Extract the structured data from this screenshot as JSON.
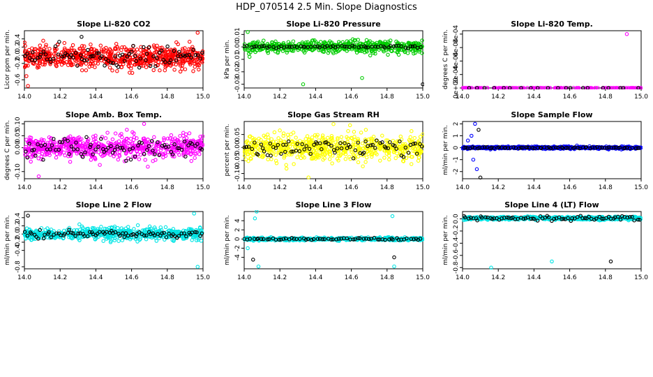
{
  "figure_title": "HDP_070514  2.5 Min. Slope Diagnostics",
  "chart_data": [
    {
      "type": "scatter",
      "title": "Slope Li-820 CO2",
      "ylabel": "Licor ppm per min.",
      "xlim": [
        14.0,
        15.0
      ],
      "ylim": [
        -0.8,
        0.6
      ],
      "xticks": [
        "14.0",
        "14.2",
        "14.4",
        "14.6",
        "14.8",
        "15.0"
      ],
      "yticks": [
        [
          -0.6,
          "-0.6"
        ],
        [
          -0.2,
          "-0.2"
        ],
        [
          0.0,
          "0.0"
        ],
        [
          0.2,
          "0.2"
        ],
        [
          0.4,
          "0.4"
        ]
      ],
      "color": "#ff0000",
      "n_points": 700,
      "center": -0.05,
      "spread": 0.22,
      "black_spread": 0.2,
      "outliers": [
        [
          14.02,
          -0.75
        ],
        [
          14.97,
          0.55
        ],
        [
          14.32,
          0.45
        ]
      ]
    },
    {
      "type": "scatter",
      "title": "Slope Li-820 Pressure",
      "ylabel": "kPa per min.",
      "xlim": [
        14.0,
        15.0
      ],
      "ylim": [
        -0.033,
        0.013
      ],
      "xticks": [
        "14.0",
        "14.2",
        "14.4",
        "14.6",
        "14.8",
        "15.0"
      ],
      "yticks": [
        [
          -0.03,
          "-0.03"
        ],
        [
          -0.02,
          "-0.02"
        ],
        [
          -0.01,
          "-0.01"
        ],
        [
          0.0,
          "0.00"
        ],
        [
          0.01,
          "0.01"
        ]
      ],
      "color": "#00cc00",
      "n_points": 520,
      "center": 0.0,
      "spread": 0.004,
      "black_spread": 0.0008,
      "outliers": [
        [
          14.33,
          -0.03
        ],
        [
          14.66,
          -0.025
        ],
        [
          15.0,
          -0.03
        ],
        [
          14.02,
          0.012
        ],
        [
          14.03,
          -0.008
        ]
      ]
    },
    {
      "type": "scatter",
      "title": "Slope Li-820 Temp.",
      "ylabel": "degrees C per min.",
      "xlim": [
        14.0,
        15.0
      ],
      "ylim": [
        0.0,
        0.00085
      ],
      "xticks": [
        "14.0",
        "14.2",
        "14.4",
        "14.6",
        "14.8",
        "15.0"
      ],
      "yticks": [
        [
          0.0,
          "0e+00"
        ],
        [
          0.0002,
          "2e-04"
        ],
        [
          0.0004,
          "4e-04"
        ],
        [
          0.0006,
          "6e-04"
        ],
        [
          0.0008,
          "8e-04"
        ]
      ],
      "color": "#ff00ff",
      "n_points": 160,
      "center": 0.0,
      "spread": 0.0,
      "black_spread": 0.0,
      "outliers": [
        [
          14.92,
          0.0008
        ]
      ]
    },
    {
      "type": "scatter",
      "title": "Slope Amb. Box Temp.",
      "ylabel": "degrees C per min.",
      "xlim": [
        14.0,
        15.0
      ],
      "ylim": [
        -0.13,
        0.11
      ],
      "xticks": [
        "14.0",
        "14.2",
        "14.4",
        "14.6",
        "14.8",
        "15.0"
      ],
      "yticks": [
        [
          -0.1,
          "-0.10"
        ],
        [
          0.0,
          "0.00"
        ],
        [
          0.05,
          "0.05"
        ],
        [
          0.1,
          "0.10"
        ]
      ],
      "color": "#ff00ff",
      "n_points": 650,
      "center": 0.0,
      "spread": 0.04,
      "black_spread": 0.035,
      "outliers": [
        [
          14.08,
          -0.12
        ],
        [
          14.67,
          0.1
        ]
      ]
    },
    {
      "type": "scatter",
      "title": "Slope Gas Stream RH",
      "ylabel": "percent per min.",
      "xlim": [
        14.0,
        15.0
      ],
      "ylim": [
        -0.12,
        0.1
      ],
      "xticks": [
        "14.0",
        "14.2",
        "14.4",
        "14.6",
        "14.8",
        "15.0"
      ],
      "yticks": [
        [
          -0.1,
          "-0.10"
        ],
        [
          -0.05,
          "-0.05"
        ],
        [
          0.0,
          "0.00"
        ],
        [
          0.05,
          "0.05"
        ]
      ],
      "color": "#ffff00",
      "n_points": 650,
      "center": 0.0,
      "spread": 0.04,
      "black_spread": 0.03,
      "outliers": [
        [
          14.36,
          -0.115
        ],
        [
          14.5,
          0.09
        ]
      ]
    },
    {
      "type": "scatter",
      "title": "Slope Sample Flow",
      "ylabel": "ml/min per min.",
      "xlim": [
        14.0,
        15.0
      ],
      "ylim": [
        -2.6,
        2.2
      ],
      "xticks": [
        "14.0",
        "14.2",
        "14.4",
        "14.6",
        "14.8",
        "15.0"
      ],
      "yticks": [
        [
          -2,
          "-2"
        ],
        [
          -1,
          "-1"
        ],
        [
          0,
          "0"
        ],
        [
          1,
          "1"
        ],
        [
          2,
          "2"
        ]
      ],
      "color": "#0000ff",
      "n_points": 600,
      "center": 0.0,
      "spread": 0.08,
      "black_spread": 0.05,
      "outliers": [
        [
          14.05,
          1.0
        ],
        [
          14.07,
          2.0
        ],
        [
          14.09,
          1.5
        ],
        [
          14.06,
          -1.0
        ],
        [
          14.08,
          -1.8
        ],
        [
          14.1,
          -2.5
        ],
        [
          14.03,
          0.6
        ]
      ]
    },
    {
      "type": "scatter",
      "title": "Slope Line 2 Flow",
      "ylabel": "ml/min per min.",
      "xlim": [
        14.0,
        15.0
      ],
      "ylim": [
        -0.85,
        0.55
      ],
      "xticks": [
        "14.0",
        "14.2",
        "14.4",
        "14.6",
        "14.8",
        "15.0"
      ],
      "yticks": [
        [
          -0.8,
          "-0.8"
        ],
        [
          -0.4,
          "-0.4"
        ],
        [
          -0.2,
          "-0.2"
        ],
        [
          0.0,
          "0.0"
        ],
        [
          0.2,
          "0.2"
        ],
        [
          0.4,
          "0.4"
        ]
      ],
      "color": "#00e5e5",
      "n_points": 650,
      "center": 0.0,
      "spread": 0.12,
      "black_spread": 0.07,
      "outliers": [
        [
          14.95,
          0.5
        ],
        [
          14.97,
          -0.8
        ],
        [
          14.02,
          0.45
        ]
      ]
    },
    {
      "type": "scatter",
      "title": "Slope Line 3 Flow",
      "ylabel": "ml/min per min.",
      "xlim": [
        14.0,
        15.0
      ],
      "ylim": [
        -6.5,
        6.0
      ],
      "xticks": [
        "14.0",
        "14.2",
        "14.4",
        "14.6",
        "14.8",
        "15.0"
      ],
      "yticks": [
        [
          -4,
          "-4"
        ],
        [
          -2,
          "-2"
        ],
        [
          0,
          "0"
        ],
        [
          2,
          "2"
        ],
        [
          4,
          "4"
        ]
      ],
      "color": "#00e5e5",
      "n_points": 520,
      "center": 0.0,
      "spread": 0.25,
      "black_spread": 0.2,
      "outliers": [
        [
          14.06,
          4.5
        ],
        [
          14.07,
          6.0
        ],
        [
          14.05,
          -4.5
        ],
        [
          14.08,
          -6.0
        ],
        [
          14.83,
          5.0
        ],
        [
          14.84,
          -4.0
        ],
        [
          14.84,
          -6.0
        ],
        [
          14.02,
          -2.0
        ]
      ]
    },
    {
      "type": "scatter",
      "title": "Slope Line 4 (LT) Flow",
      "ylabel": "ml/min per min.",
      "xlim": [
        14.0,
        15.0
      ],
      "ylim": [
        -0.82,
        0.12
      ],
      "xticks": [
        "14.0",
        "14.2",
        "14.4",
        "14.6",
        "14.8",
        "15.0"
      ],
      "yticks": [
        [
          -0.8,
          "-0.8"
        ],
        [
          -0.6,
          "-0.6"
        ],
        [
          -0.4,
          "-0.4"
        ],
        [
          -0.2,
          "-0.2"
        ],
        [
          0.0,
          "0.0"
        ]
      ],
      "color": "#00e5e5",
      "n_points": 600,
      "center": 0.01,
      "spread": 0.02,
      "black_spread": 0.03,
      "outliers": [
        [
          14.16,
          -0.8
        ],
        [
          14.5,
          -0.7
        ],
        [
          14.83,
          -0.7
        ]
      ]
    }
  ]
}
